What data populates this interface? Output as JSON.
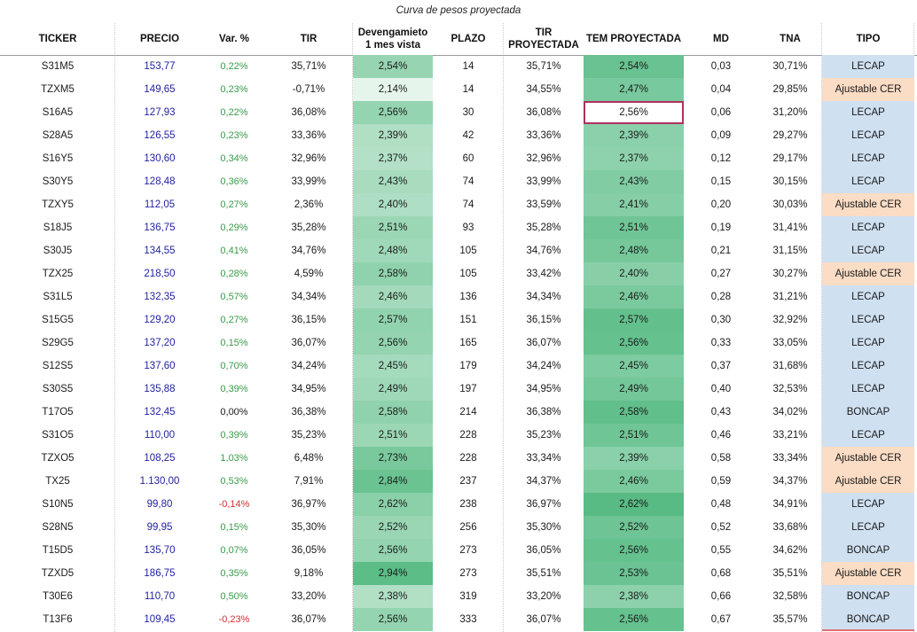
{
  "title": "Curva de pesos proyectada",
  "headers": {
    "ticker": "TICKER",
    "precio": "PRECIO",
    "var": "Var. %",
    "tir": "TIR",
    "dev_line1": "Devengamieto",
    "dev_line2": "1 mes vista",
    "plazo": "PLAZO",
    "tirp_line1": "TIR",
    "tirp_line2": "PROYECTADA",
    "tem": "TEM PROYECTADA",
    "md": "MD",
    "tna": "TNA",
    "tipo": "TIPO"
  },
  "colors": {
    "price_text": "#1f1fa0",
    "var_positive": "#3a9a4a",
    "var_negative": "#d03030",
    "lecap_fill": "#cfe0f1",
    "cer_fill": "#fbdcc4",
    "selected_border": "#b03060",
    "dev_scale_low": "#e6f5ec",
    "dev_scale_high": "#5cbd87",
    "tem_scale_low": "#8ed2ad",
    "tem_scale_high": "#58bb84"
  },
  "rows": [
    {
      "ticker": "S31M5",
      "precio": "153,77",
      "var": "0,22%",
      "var_sign": "pos",
      "tir": "35,71%",
      "dev": "2,54%",
      "plazo": "14",
      "tir_proy": "35,71%",
      "tem": "2,54%",
      "md": "0,03",
      "tna": "30,71%",
      "tipo": "LECAP"
    },
    {
      "ticker": "TZXM5",
      "precio": "149,65",
      "var": "0,23%",
      "var_sign": "pos",
      "tir": "-0,71%",
      "dev": "2,14%",
      "plazo": "14",
      "tir_proy": "34,55%",
      "tem": "2,47%",
      "md": "0,04",
      "tna": "29,85%",
      "tipo": "Ajustable CER"
    },
    {
      "ticker": "S16A5",
      "precio": "127,93",
      "var": "0,22%",
      "var_sign": "pos",
      "tir": "36,08%",
      "dev": "2,56%",
      "plazo": "30",
      "tir_proy": "36,08%",
      "tem": "2,56%",
      "md": "0,06",
      "tna": "31,20%",
      "tipo": "LECAP",
      "selected": true
    },
    {
      "ticker": "S28A5",
      "precio": "126,55",
      "var": "0,23%",
      "var_sign": "pos",
      "tir": "33,36%",
      "dev": "2,39%",
      "plazo": "42",
      "tir_proy": "33,36%",
      "tem": "2,39%",
      "md": "0,09",
      "tna": "29,27%",
      "tipo": "LECAP"
    },
    {
      "ticker": "S16Y5",
      "precio": "130,60",
      "var": "0,34%",
      "var_sign": "pos",
      "tir": "32,96%",
      "dev": "2,37%",
      "plazo": "60",
      "tir_proy": "32,96%",
      "tem": "2,37%",
      "md": "0,12",
      "tna": "29,17%",
      "tipo": "LECAP"
    },
    {
      "ticker": "S30Y5",
      "precio": "128,48",
      "var": "0,36%",
      "var_sign": "pos",
      "tir": "33,99%",
      "dev": "2,43%",
      "plazo": "74",
      "tir_proy": "33,99%",
      "tem": "2,43%",
      "md": "0,15",
      "tna": "30,15%",
      "tipo": "LECAP"
    },
    {
      "ticker": "TZXY5",
      "precio": "112,05",
      "var": "0,27%",
      "var_sign": "pos",
      "tir": "2,36%",
      "dev": "2,40%",
      "plazo": "74",
      "tir_proy": "33,59%",
      "tem": "2,41%",
      "md": "0,20",
      "tna": "30,03%",
      "tipo": "Ajustable CER"
    },
    {
      "ticker": "S18J5",
      "precio": "136,75",
      "var": "0,29%",
      "var_sign": "pos",
      "tir": "35,28%",
      "dev": "2,51%",
      "plazo": "93",
      "tir_proy": "35,28%",
      "tem": "2,51%",
      "md": "0,19",
      "tna": "31,41%",
      "tipo": "LECAP"
    },
    {
      "ticker": "S30J5",
      "precio": "134,55",
      "var": "0,41%",
      "var_sign": "pos",
      "tir": "34,76%",
      "dev": "2,48%",
      "plazo": "105",
      "tir_proy": "34,76%",
      "tem": "2,48%",
      "md": "0,21",
      "tna": "31,15%",
      "tipo": "LECAP"
    },
    {
      "ticker": "TZX25",
      "precio": "218,50",
      "var": "0,28%",
      "var_sign": "pos",
      "tir": "4,59%",
      "dev": "2,58%",
      "plazo": "105",
      "tir_proy": "33,42%",
      "tem": "2,40%",
      "md": "0,27",
      "tna": "30,27%",
      "tipo": "Ajustable CER"
    },
    {
      "ticker": "S31L5",
      "precio": "132,35",
      "var": "0,57%",
      "var_sign": "pos",
      "tir": "34,34%",
      "dev": "2,46%",
      "plazo": "136",
      "tir_proy": "34,34%",
      "tem": "2,46%",
      "md": "0,28",
      "tna": "31,21%",
      "tipo": "LECAP"
    },
    {
      "ticker": "S15G5",
      "precio": "129,20",
      "var": "0,27%",
      "var_sign": "pos",
      "tir": "36,15%",
      "dev": "2,57%",
      "plazo": "151",
      "tir_proy": "36,15%",
      "tem": "2,57%",
      "md": "0,30",
      "tna": "32,92%",
      "tipo": "LECAP"
    },
    {
      "ticker": "S29G5",
      "precio": "137,20",
      "var": "0,15%",
      "var_sign": "pos",
      "tir": "36,07%",
      "dev": "2,56%",
      "plazo": "165",
      "tir_proy": "36,07%",
      "tem": "2,56%",
      "md": "0,33",
      "tna": "33,05%",
      "tipo": "LECAP"
    },
    {
      "ticker": "S12S5",
      "precio": "137,60",
      "var": "0,70%",
      "var_sign": "pos",
      "tir": "34,24%",
      "dev": "2,45%",
      "plazo": "179",
      "tir_proy": "34,24%",
      "tem": "2,45%",
      "md": "0,37",
      "tna": "31,68%",
      "tipo": "LECAP"
    },
    {
      "ticker": "S30S5",
      "precio": "135,88",
      "var": "0,39%",
      "var_sign": "pos",
      "tir": "34,95%",
      "dev": "2,49%",
      "plazo": "197",
      "tir_proy": "34,95%",
      "tem": "2,49%",
      "md": "0,40",
      "tna": "32,53%",
      "tipo": "LECAP"
    },
    {
      "ticker": "T17O5",
      "precio": "132,45",
      "var": "0,00%",
      "var_sign": "zero",
      "tir": "36,38%",
      "dev": "2,58%",
      "plazo": "214",
      "tir_proy": "36,38%",
      "tem": "2,58%",
      "md": "0,43",
      "tna": "34,02%",
      "tipo": "BONCAP"
    },
    {
      "ticker": "S31O5",
      "precio": "110,00",
      "var": "0,39%",
      "var_sign": "pos",
      "tir": "35,23%",
      "dev": "2,51%",
      "plazo": "228",
      "tir_proy": "35,23%",
      "tem": "2,51%",
      "md": "0,46",
      "tna": "33,21%",
      "tipo": "LECAP"
    },
    {
      "ticker": "TZXO5",
      "precio": "108,25",
      "var": "1,03%",
      "var_sign": "pos",
      "tir": "6,48%",
      "dev": "2,73%",
      "plazo": "228",
      "tir_proy": "33,34%",
      "tem": "2,39%",
      "md": "0,58",
      "tna": "33,34%",
      "tipo": "Ajustable CER"
    },
    {
      "ticker": "TX25",
      "precio": "1.130,00",
      "var": "0,53%",
      "var_sign": "pos",
      "tir": "7,91%",
      "dev": "2,84%",
      "plazo": "237",
      "tir_proy": "34,37%",
      "tem": "2,46%",
      "md": "0,59",
      "tna": "34,37%",
      "tipo": "Ajustable CER"
    },
    {
      "ticker": "S10N5",
      "precio": "99,80",
      "var": "-0,14%",
      "var_sign": "neg",
      "tir": "36,97%",
      "dev": "2,62%",
      "plazo": "238",
      "tir_proy": "36,97%",
      "tem": "2,62%",
      "md": "0,48",
      "tna": "34,91%",
      "tipo": "LECAP"
    },
    {
      "ticker": "S28N5",
      "precio": "99,95",
      "var": "0,15%",
      "var_sign": "pos",
      "tir": "35,30%",
      "dev": "2,52%",
      "plazo": "256",
      "tir_proy": "35,30%",
      "tem": "2,52%",
      "md": "0,52",
      "tna": "33,68%",
      "tipo": "LECAP"
    },
    {
      "ticker": "T15D5",
      "precio": "135,70",
      "var": "0,07%",
      "var_sign": "pos",
      "tir": "36,05%",
      "dev": "2,56%",
      "plazo": "273",
      "tir_proy": "36,05%",
      "tem": "2,56%",
      "md": "0,55",
      "tna": "34,62%",
      "tipo": "BONCAP"
    },
    {
      "ticker": "TZXD5",
      "precio": "186,75",
      "var": "0,35%",
      "var_sign": "pos",
      "tir": "9,18%",
      "dev": "2,94%",
      "plazo": "273",
      "tir_proy": "35,51%",
      "tem": "2,53%",
      "md": "0,68",
      "tna": "35,51%",
      "tipo": "Ajustable CER"
    },
    {
      "ticker": "T30E6",
      "precio": "110,70",
      "var": "0,50%",
      "var_sign": "pos",
      "tir": "33,20%",
      "dev": "2,38%",
      "plazo": "319",
      "tir_proy": "33,20%",
      "tem": "2,38%",
      "md": "0,66",
      "tna": "32,58%",
      "tipo": "BONCAP"
    },
    {
      "ticker": "T13F6",
      "precio": "109,45",
      "var": "-0,23%",
      "var_sign": "neg",
      "tir": "36,07%",
      "dev": "2,56%",
      "plazo": "333",
      "tir_proy": "36,07%",
      "tem": "2,56%",
      "md": "0,67",
      "tna": "35,57%",
      "tipo": "BONCAP"
    }
  ]
}
